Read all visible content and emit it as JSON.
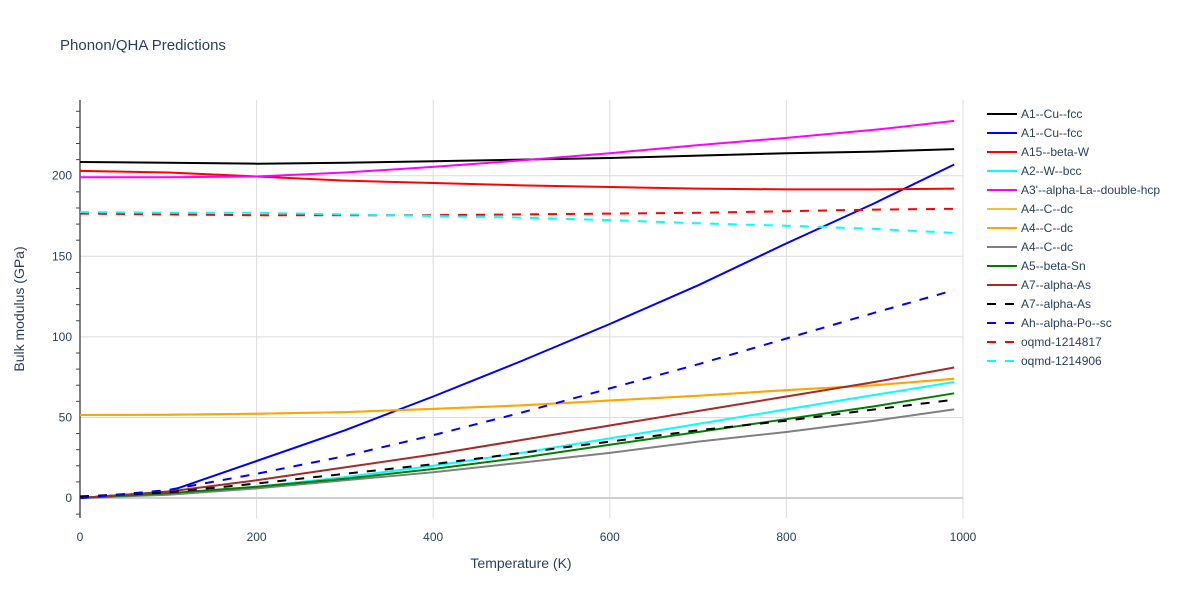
{
  "chart_data": {
    "type": "line",
    "title": "Phonon/QHA Predictions",
    "xlabel": "Temperature (K)",
    "ylabel": "Bulk modulus (GPa)",
    "xlim": [
      0,
      1000
    ],
    "ylim": [
      -12.4,
      247
    ],
    "xticks": [
      0,
      200,
      400,
      600,
      800,
      1000
    ],
    "yticks": [
      0,
      50,
      100,
      150,
      200
    ],
    "grid": true,
    "legend_position": "right",
    "x": [
      0,
      100,
      200,
      300,
      400,
      500,
      600,
      700,
      800,
      900,
      990
    ],
    "series": [
      {
        "name": "A1--Cu--fcc",
        "color": "#000000",
        "dash": false,
        "values": [
          208.5,
          208,
          207.5,
          208,
          209,
          210,
          211,
          212.5,
          214,
          215,
          216.5
        ]
      },
      {
        "name": "A1--Cu--fcc",
        "color": "#0000ff",
        "dash": false,
        "values": [
          0,
          4,
          23,
          42,
          63,
          85,
          108,
          132,
          158,
          183,
          207
        ]
      },
      {
        "name": "A15--beta-W",
        "color": "#ff0000",
        "dash": false,
        "values": [
          203,
          202,
          199.5,
          197,
          195.5,
          194,
          193,
          192,
          191.5,
          191.5,
          192
        ]
      },
      {
        "name": "A2--W--bcc",
        "color": "#00ffff",
        "dash": false,
        "values": [
          0,
          2.5,
          7,
          13,
          20,
          28,
          37,
          46,
          55,
          64,
          72
        ]
      },
      {
        "name": "A3'--alpha-La--double-hcp",
        "color": "#ff00ff",
        "dash": false,
        "values": [
          199,
          199,
          199.5,
          202,
          205.5,
          209.5,
          214,
          219,
          223.5,
          228.5,
          234
        ]
      },
      {
        "name": "A4--C--dc",
        "color": "#f0c040",
        "dash": false,
        "values": [
          51.5,
          51.7,
          52.3,
          53.3,
          55.3,
          57.5,
          60.5,
          63.5,
          67,
          70,
          74
        ]
      },
      {
        "name": "A4--C--dc",
        "color": "#ffa500",
        "dash": false,
        "values": [
          51.5,
          51.7,
          52.3,
          53.3,
          55.3,
          57.5,
          60.5,
          63.5,
          67,
          70,
          74
        ]
      },
      {
        "name": "A4--C--dc",
        "color": "#808080",
        "dash": false,
        "values": [
          0,
          2,
          6,
          11,
          16,
          22,
          28,
          35,
          41,
          48,
          55
        ]
      },
      {
        "name": "A5--beta-Sn",
        "color": "#008000",
        "dash": false,
        "values": [
          0,
          3,
          7,
          12,
          18,
          25,
          33,
          41,
          49,
          57,
          65
        ]
      },
      {
        "name": "A7--alpha-As",
        "color": "#a52a2a",
        "dash": false,
        "values": [
          0,
          4,
          11,
          19,
          27,
          36,
          45,
          54,
          63,
          72,
          81
        ]
      },
      {
        "name": "A7--alpha-As",
        "color": "#000000",
        "dash": true,
        "values": [
          1,
          3.5,
          9,
          15,
          21,
          28,
          35,
          42,
          48,
          55,
          61
        ]
      },
      {
        "name": "Ah--alpha-Po--sc",
        "color": "#0000ff",
        "dash": true,
        "values": [
          0,
          5,
          15,
          26,
          39,
          53,
          68,
          83,
          99,
          115,
          129
        ]
      },
      {
        "name": "oqmd-1214817",
        "color": "#ff0000",
        "dash": true,
        "values": [
          176.5,
          176,
          175.5,
          175.5,
          175.5,
          176,
          176.5,
          177,
          178,
          179,
          179.5
        ]
      },
      {
        "name": "oqmd-1214906",
        "color": "#00ffff",
        "dash": true,
        "values": [
          177.5,
          177,
          177,
          176,
          175,
          174,
          172.5,
          170.5,
          169,
          167,
          164.5
        ]
      }
    ]
  }
}
